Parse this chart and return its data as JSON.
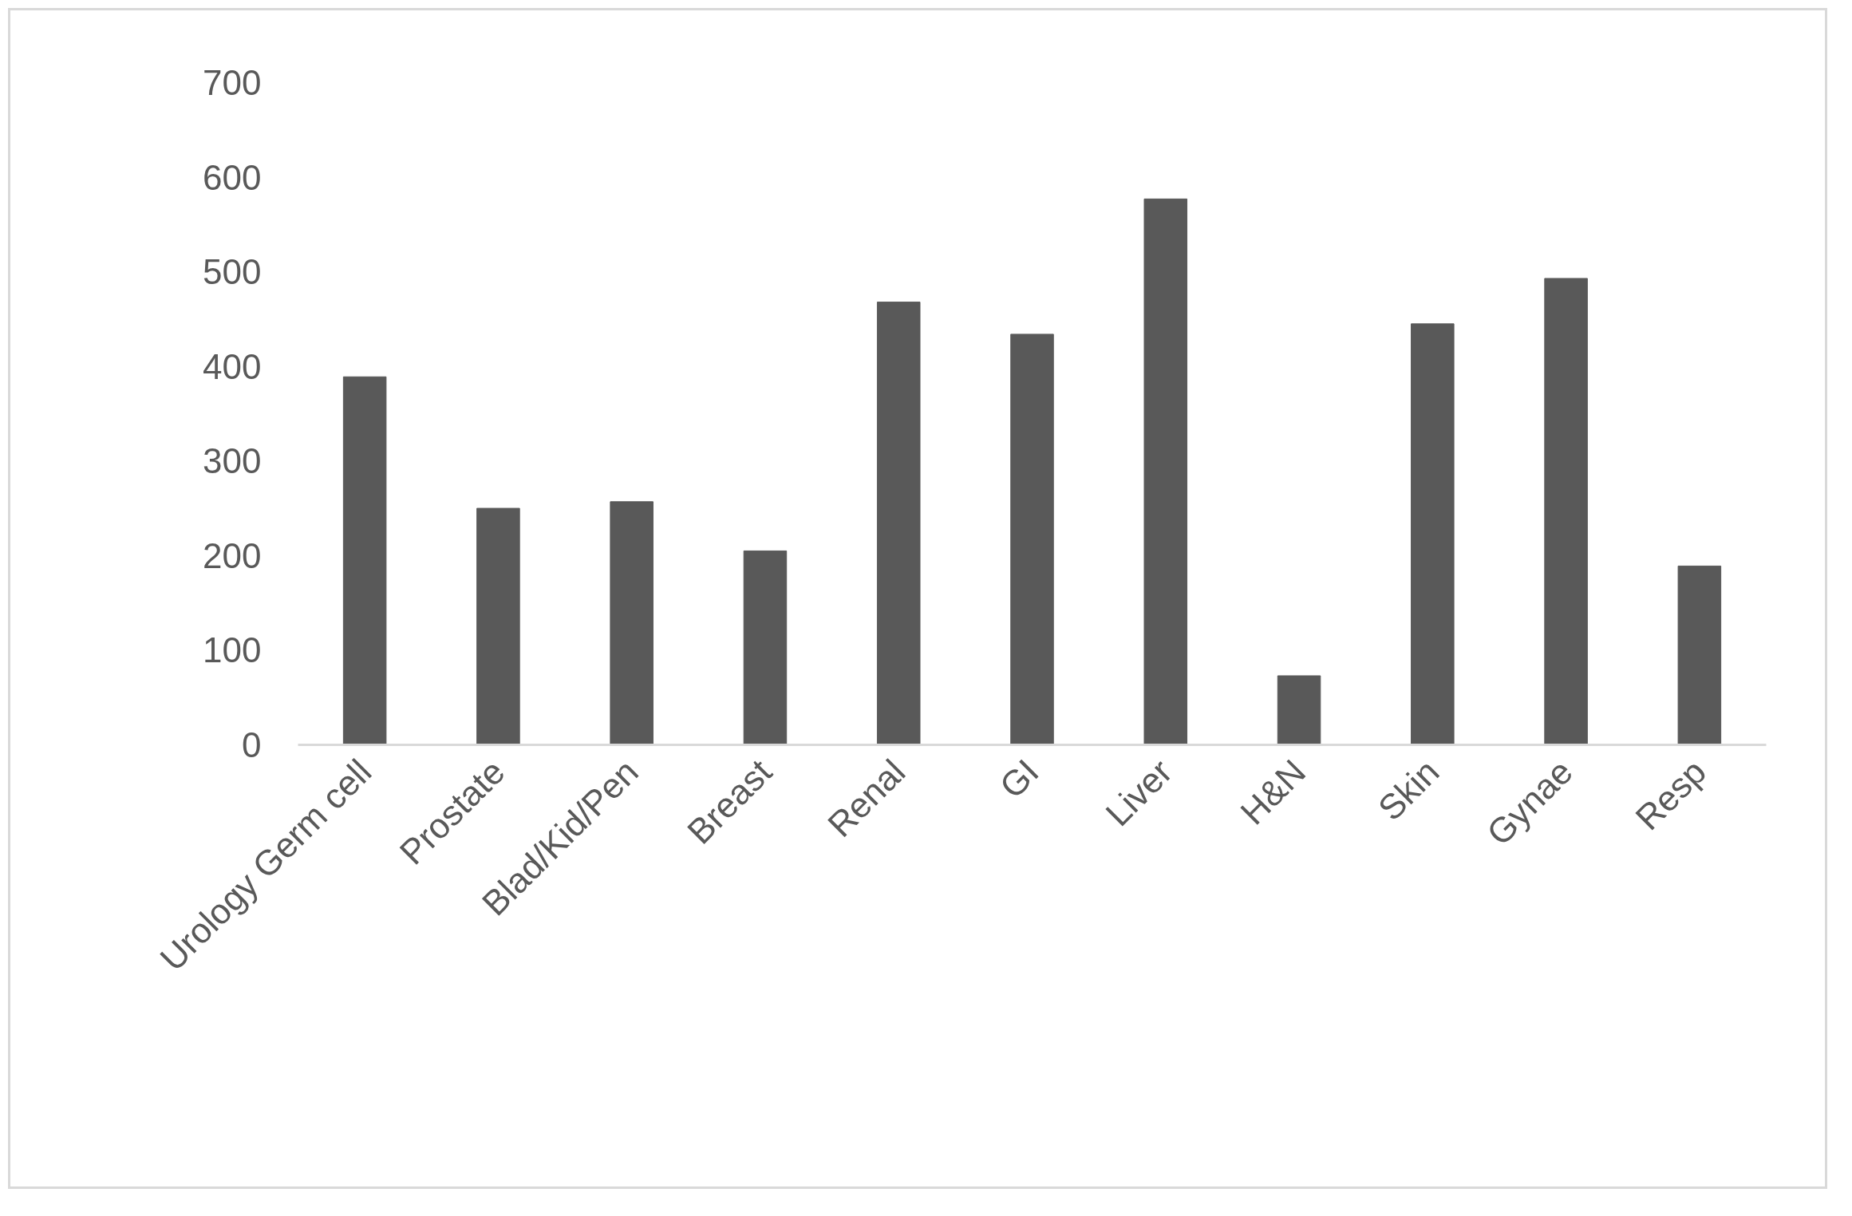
{
  "chart_data": {
    "type": "bar",
    "categories": [
      "Urology Germ cell",
      "Prostate",
      "Blad/Kid/Pen",
      "Breast",
      "Renal",
      "GI",
      "Liver",
      "H&N",
      "Skin",
      "Gynae",
      "Resp"
    ],
    "values": [
      389,
      250,
      257,
      205,
      468,
      434,
      577,
      73,
      445,
      493,
      189
    ],
    "color": "#595959",
    "ylim": [
      0,
      700
    ],
    "yticks": [
      0,
      100,
      200,
      300,
      400,
      500,
      600,
      700
    ]
  }
}
